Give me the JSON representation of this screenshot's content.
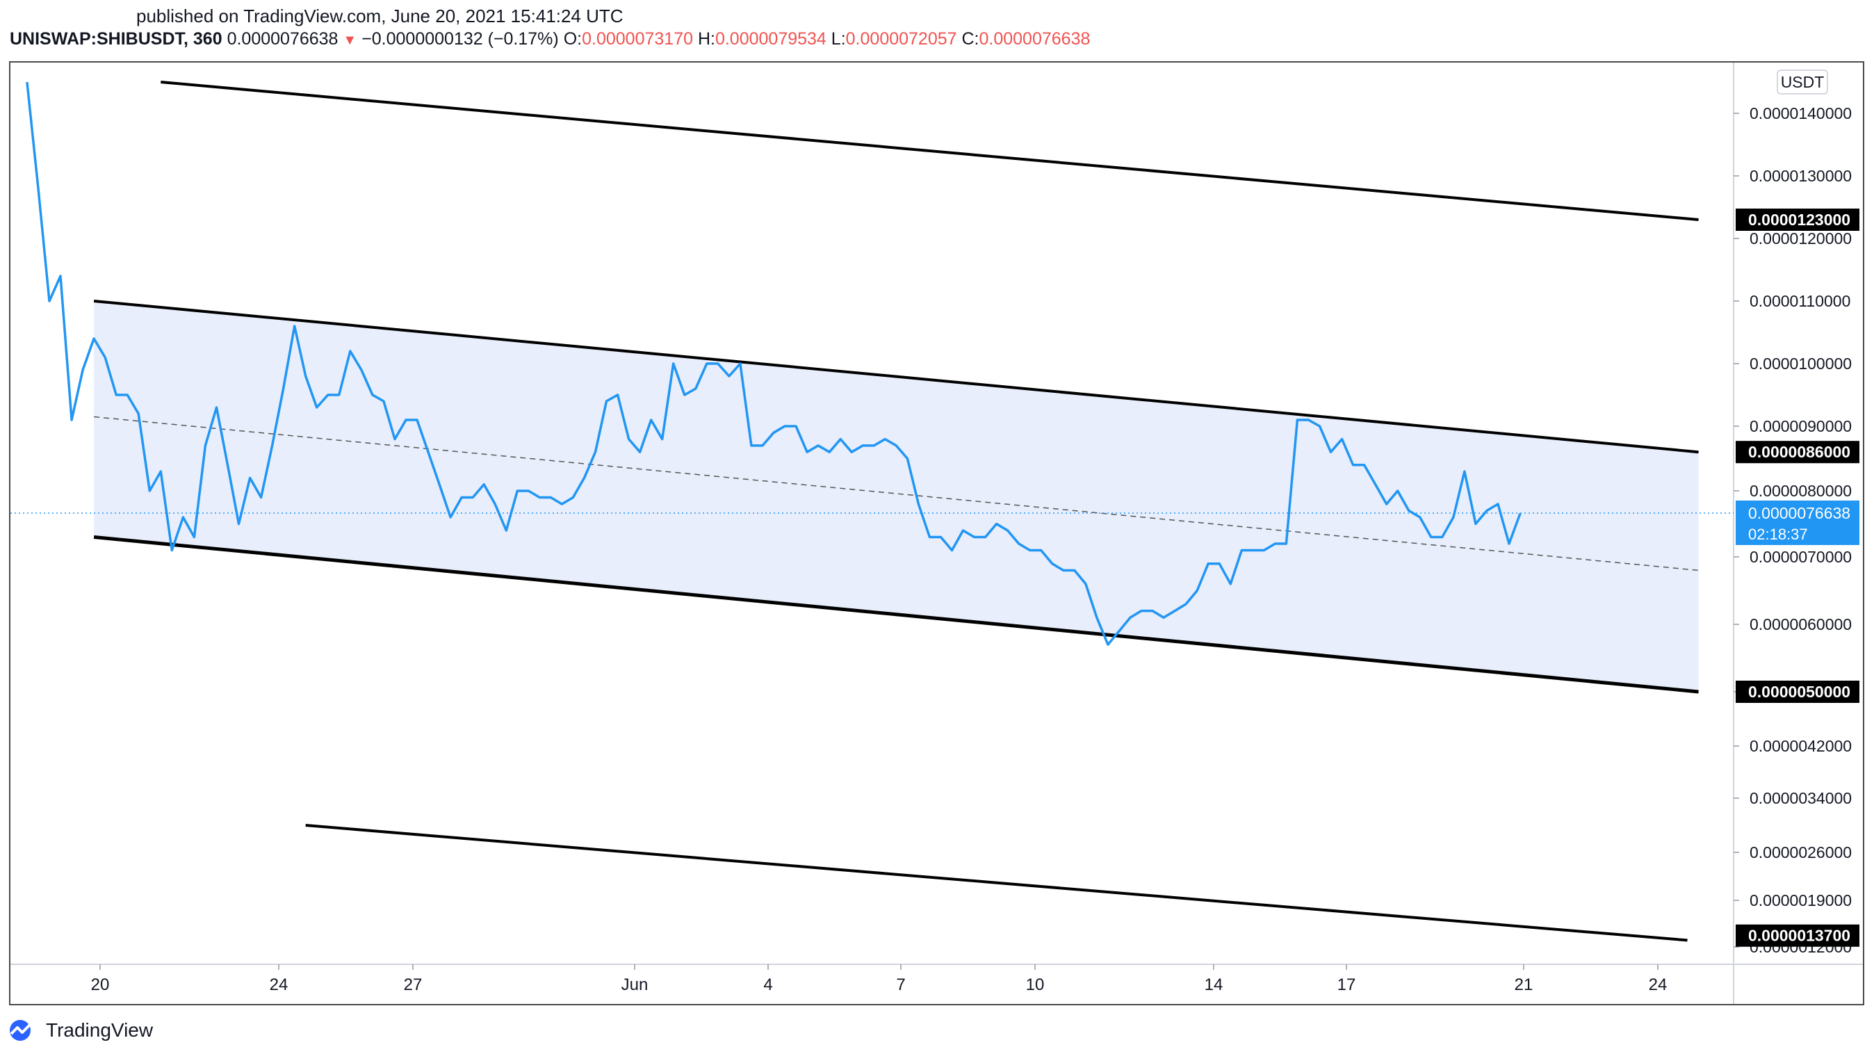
{
  "published": "published on TradingView.com, June 20, 2021 15:41:24 UTC",
  "legend": {
    "symbol": "UNISWAP:SHIBUSDT, 360",
    "price": "0.0000076638",
    "change_arrow": "▼",
    "change": "−0.0000000132 (−0.17%)",
    "open_label": "O:",
    "open": "0.0000073170",
    "high_label": "H:",
    "high": "0.0000079534",
    "low_label": "L:",
    "low": "0.0000072057",
    "close_label": "C:",
    "close": "0.0000076638"
  },
  "brand": {
    "name": "TradingView",
    "icon": "tradingview-logo-icon"
  },
  "colors": {
    "line": "#2196f3",
    "channel_fill": "#e8eefc",
    "trendline": "#000000",
    "down": "#ef5350",
    "price_tag": "#2196f3",
    "level_tag": "#000000"
  },
  "chart_data": {
    "type": "line",
    "currency_label": "USDT",
    "y_ticks": [
      "0.0000140000",
      "0.0000130000",
      "0.0000120000",
      "0.0000110000",
      "0.0000100000",
      "0.0000090000",
      "0.0000080000",
      "0.0000070000",
      "0.0000060000",
      "0.0000050000",
      "0.0000042000",
      "0.0000034000",
      "0.0000026000",
      "0.0000019000",
      "0.0000012000"
    ],
    "x_ticks": [
      "20",
      "24",
      "27",
      "Jun",
      "4",
      "7",
      "10",
      "14",
      "17",
      "21",
      "24"
    ],
    "level_tags": [
      "0.0000123000",
      "0.0000086000",
      "0.0000050000",
      "0.0000013700"
    ],
    "current_price": {
      "value": "0.0000076638",
      "countdown": "02:18:37"
    },
    "series": [
      {
        "x": [
          "May 18 00:00",
          "May 18 06:00",
          "May 18 12:00",
          "May 18 18:00",
          "May 19 00:00",
          "May 19 06:00",
          "May 19 12:00",
          "May 19 18:00",
          "May 20 00:00",
          "May 20 06:00",
          "May 20 12:00",
          "May 20 18:00",
          "May 21 00:00",
          "May 21 06:00",
          "May 21 12:00",
          "May 21 18:00",
          "May 22 00:00",
          "May 22 06:00",
          "May 22 12:00",
          "May 22 18:00",
          "May 23 00:00",
          "May 23 06:00",
          "May 23 12:00",
          "May 23 18:00",
          "May 24 00:00",
          "May 24 06:00",
          "May 24 12:00",
          "May 24 18:00",
          "May 25 00:00",
          "May 25 06:00",
          "May 25 12:00",
          "May 25 18:00",
          "May 26 00:00",
          "May 26 06:00",
          "May 26 12:00",
          "May 26 18:00",
          "May 27 00:00",
          "May 27 06:00",
          "May 27 12:00",
          "May 27 18:00",
          "May 28 00:00",
          "May 28 06:00",
          "May 28 12:00",
          "May 28 18:00",
          "May 29 00:00",
          "May 29 06:00",
          "May 29 12:00",
          "May 29 18:00",
          "May 30 00:00",
          "May 30 06:00",
          "May 30 12:00",
          "May 30 18:00",
          "May 31 00:00",
          "May 31 06:00",
          "May 31 12:00",
          "May 31 18:00",
          "Jun 1 00:00",
          "Jun 1 06:00",
          "Jun 1 12:00",
          "Jun 1 18:00",
          "Jun 2 00:00",
          "Jun 2 06:00",
          "Jun 2 12:00",
          "Jun 2 18:00",
          "Jun 3 00:00",
          "Jun 3 06:00",
          "Jun 3 12:00",
          "Jun 3 18:00",
          "Jun 4 00:00",
          "Jun 4 06:00",
          "Jun 4 12:00",
          "Jun 4 18:00",
          "Jun 5 00:00",
          "Jun 5 06:00",
          "Jun 5 12:00",
          "Jun 5 18:00",
          "Jun 6 00:00",
          "Jun 6 06:00",
          "Jun 6 12:00",
          "Jun 6 18:00",
          "Jun 7 00:00",
          "Jun 7 06:00",
          "Jun 7 12:00",
          "Jun 7 18:00",
          "Jun 8 00:00",
          "Jun 8 06:00",
          "Jun 8 12:00",
          "Jun 8 18:00",
          "Jun 9 00:00",
          "Jun 9 06:00",
          "Jun 9 12:00",
          "Jun 9 18:00",
          "Jun 10 00:00",
          "Jun 10 06:00",
          "Jun 10 12:00",
          "Jun 10 18:00",
          "Jun 11 00:00",
          "Jun 11 06:00",
          "Jun 11 12:00",
          "Jun 11 18:00",
          "Jun 12 00:00",
          "Jun 12 06:00",
          "Jun 12 12:00",
          "Jun 12 18:00",
          "Jun 13 00:00",
          "Jun 13 06:00",
          "Jun 13 12:00",
          "Jun 13 18:00",
          "Jun 14 00:00",
          "Jun 14 06:00",
          "Jun 14 12:00",
          "Jun 14 18:00",
          "Jun 15 00:00",
          "Jun 15 06:00",
          "Jun 15 12:00",
          "Jun 15 18:00",
          "Jun 16 00:00",
          "Jun 16 06:00",
          "Jun 16 12:00",
          "Jun 16 18:00",
          "Jun 17 00:00",
          "Jun 17 06:00",
          "Jun 17 12:00",
          "Jun 17 18:00",
          "Jun 18 00:00",
          "Jun 18 06:00",
          "Jun 18 12:00",
          "Jun 18 18:00",
          "Jun 19 00:00",
          "Jun 19 06:00",
          "Jun 19 12:00",
          "Jun 19 18:00",
          "Jun 20 00:00",
          "Jun 20 06:00",
          "Jun 20 12:00"
        ],
        "values": [
          1.45e-05,
          1.28e-05,
          1.1e-05,
          1.14e-05,
          9.1e-06,
          9.9e-06,
          1.04e-05,
          1.01e-05,
          9.5e-06,
          9.5e-06,
          9.2e-06,
          8e-06,
          8.3e-06,
          7.1e-06,
          7.6e-06,
          7.3e-06,
          8.7e-06,
          9.3e-06,
          8.4e-06,
          7.5e-06,
          8.2e-06,
          7.9e-06,
          8.7e-06,
          9.6e-06,
          1.06e-05,
          9.8e-06,
          9.3e-06,
          9.5e-06,
          9.5e-06,
          1.02e-05,
          9.9e-06,
          9.5e-06,
          9.4e-06,
          8.8e-06,
          9.1e-06,
          9.1e-06,
          8.6e-06,
          8.1e-06,
          7.6e-06,
          7.9e-06,
          7.9e-06,
          8.1e-06,
          7.8e-06,
          7.4e-06,
          8e-06,
          8e-06,
          7.9e-06,
          7.9e-06,
          7.8e-06,
          7.9e-06,
          8.2e-06,
          8.6e-06,
          9.4e-06,
          9.5e-06,
          8.8e-06,
          8.6e-06,
          9.1e-06,
          8.8e-06,
          1e-05,
          9.5e-06,
          9.6e-06,
          1e-05,
          1e-05,
          9.8e-06,
          1e-05,
          8.7e-06,
          8.7e-06,
          8.9e-06,
          9e-06,
          9e-06,
          8.6e-06,
          8.7e-06,
          8.6e-06,
          8.8e-06,
          8.6e-06,
          8.7e-06,
          8.7e-06,
          8.8e-06,
          8.7e-06,
          8.5e-06,
          7.8e-06,
          7.3e-06,
          7.3e-06,
          7.1e-06,
          7.4e-06,
          7.3e-06,
          7.3e-06,
          7.5e-06,
          7.4e-06,
          7.2e-06,
          7.1e-06,
          7.1e-06,
          6.9e-06,
          6.8e-06,
          6.8e-06,
          6.6e-06,
          6.1e-06,
          5.7e-06,
          5.9e-06,
          6.1e-06,
          6.2e-06,
          6.2e-06,
          6.1e-06,
          6.2e-06,
          6.3e-06,
          6.5e-06,
          6.9e-06,
          6.9e-06,
          6.6e-06,
          7.1e-06,
          7.1e-06,
          7.1e-06,
          7.2e-06,
          7.2e-06,
          9.1e-06,
          9.1e-06,
          9e-06,
          8.6e-06,
          8.8e-06,
          8.4e-06,
          8.4e-06,
          8.1e-06,
          7.8e-06,
          8e-06,
          7.7e-06,
          7.6e-06,
          7.3e-06,
          7.3e-06,
          7.6e-06,
          8.3e-06,
          7.5e-06,
          7.7e-06,
          7.8e-06,
          7.2e-06,
          7.66e-06
        ]
      }
    ],
    "trendlines": [
      {
        "role": "outer-upper",
        "from": [
          "May 21 00:00",
          1.45e-05
        ],
        "to": [
          "Jun 24 12:00",
          1.23e-05
        ]
      },
      {
        "role": "channel-upper",
        "from": [
          "May 19 12:00",
          1.1e-05
        ],
        "to": [
          "Jun 24 12:00",
          8.6e-06
        ]
      },
      {
        "role": "channel-lower",
        "from": [
          "May 19 12:00",
          7.3e-06
        ],
        "to": [
          "Jun 24 12:00",
          5e-06
        ]
      },
      {
        "role": "outer-lower",
        "from": [
          "May 24 06:00",
          3e-06
        ],
        "to": [
          "Jun 24 06:00",
          1.3e-06
        ]
      }
    ],
    "channel_midline": {
      "from": [
        "May 19 12:00",
        9.15e-06
      ],
      "to": [
        "Jun 24 12:00",
        6.8e-06
      ]
    },
    "grid": false,
    "legend_position": "top-left"
  }
}
